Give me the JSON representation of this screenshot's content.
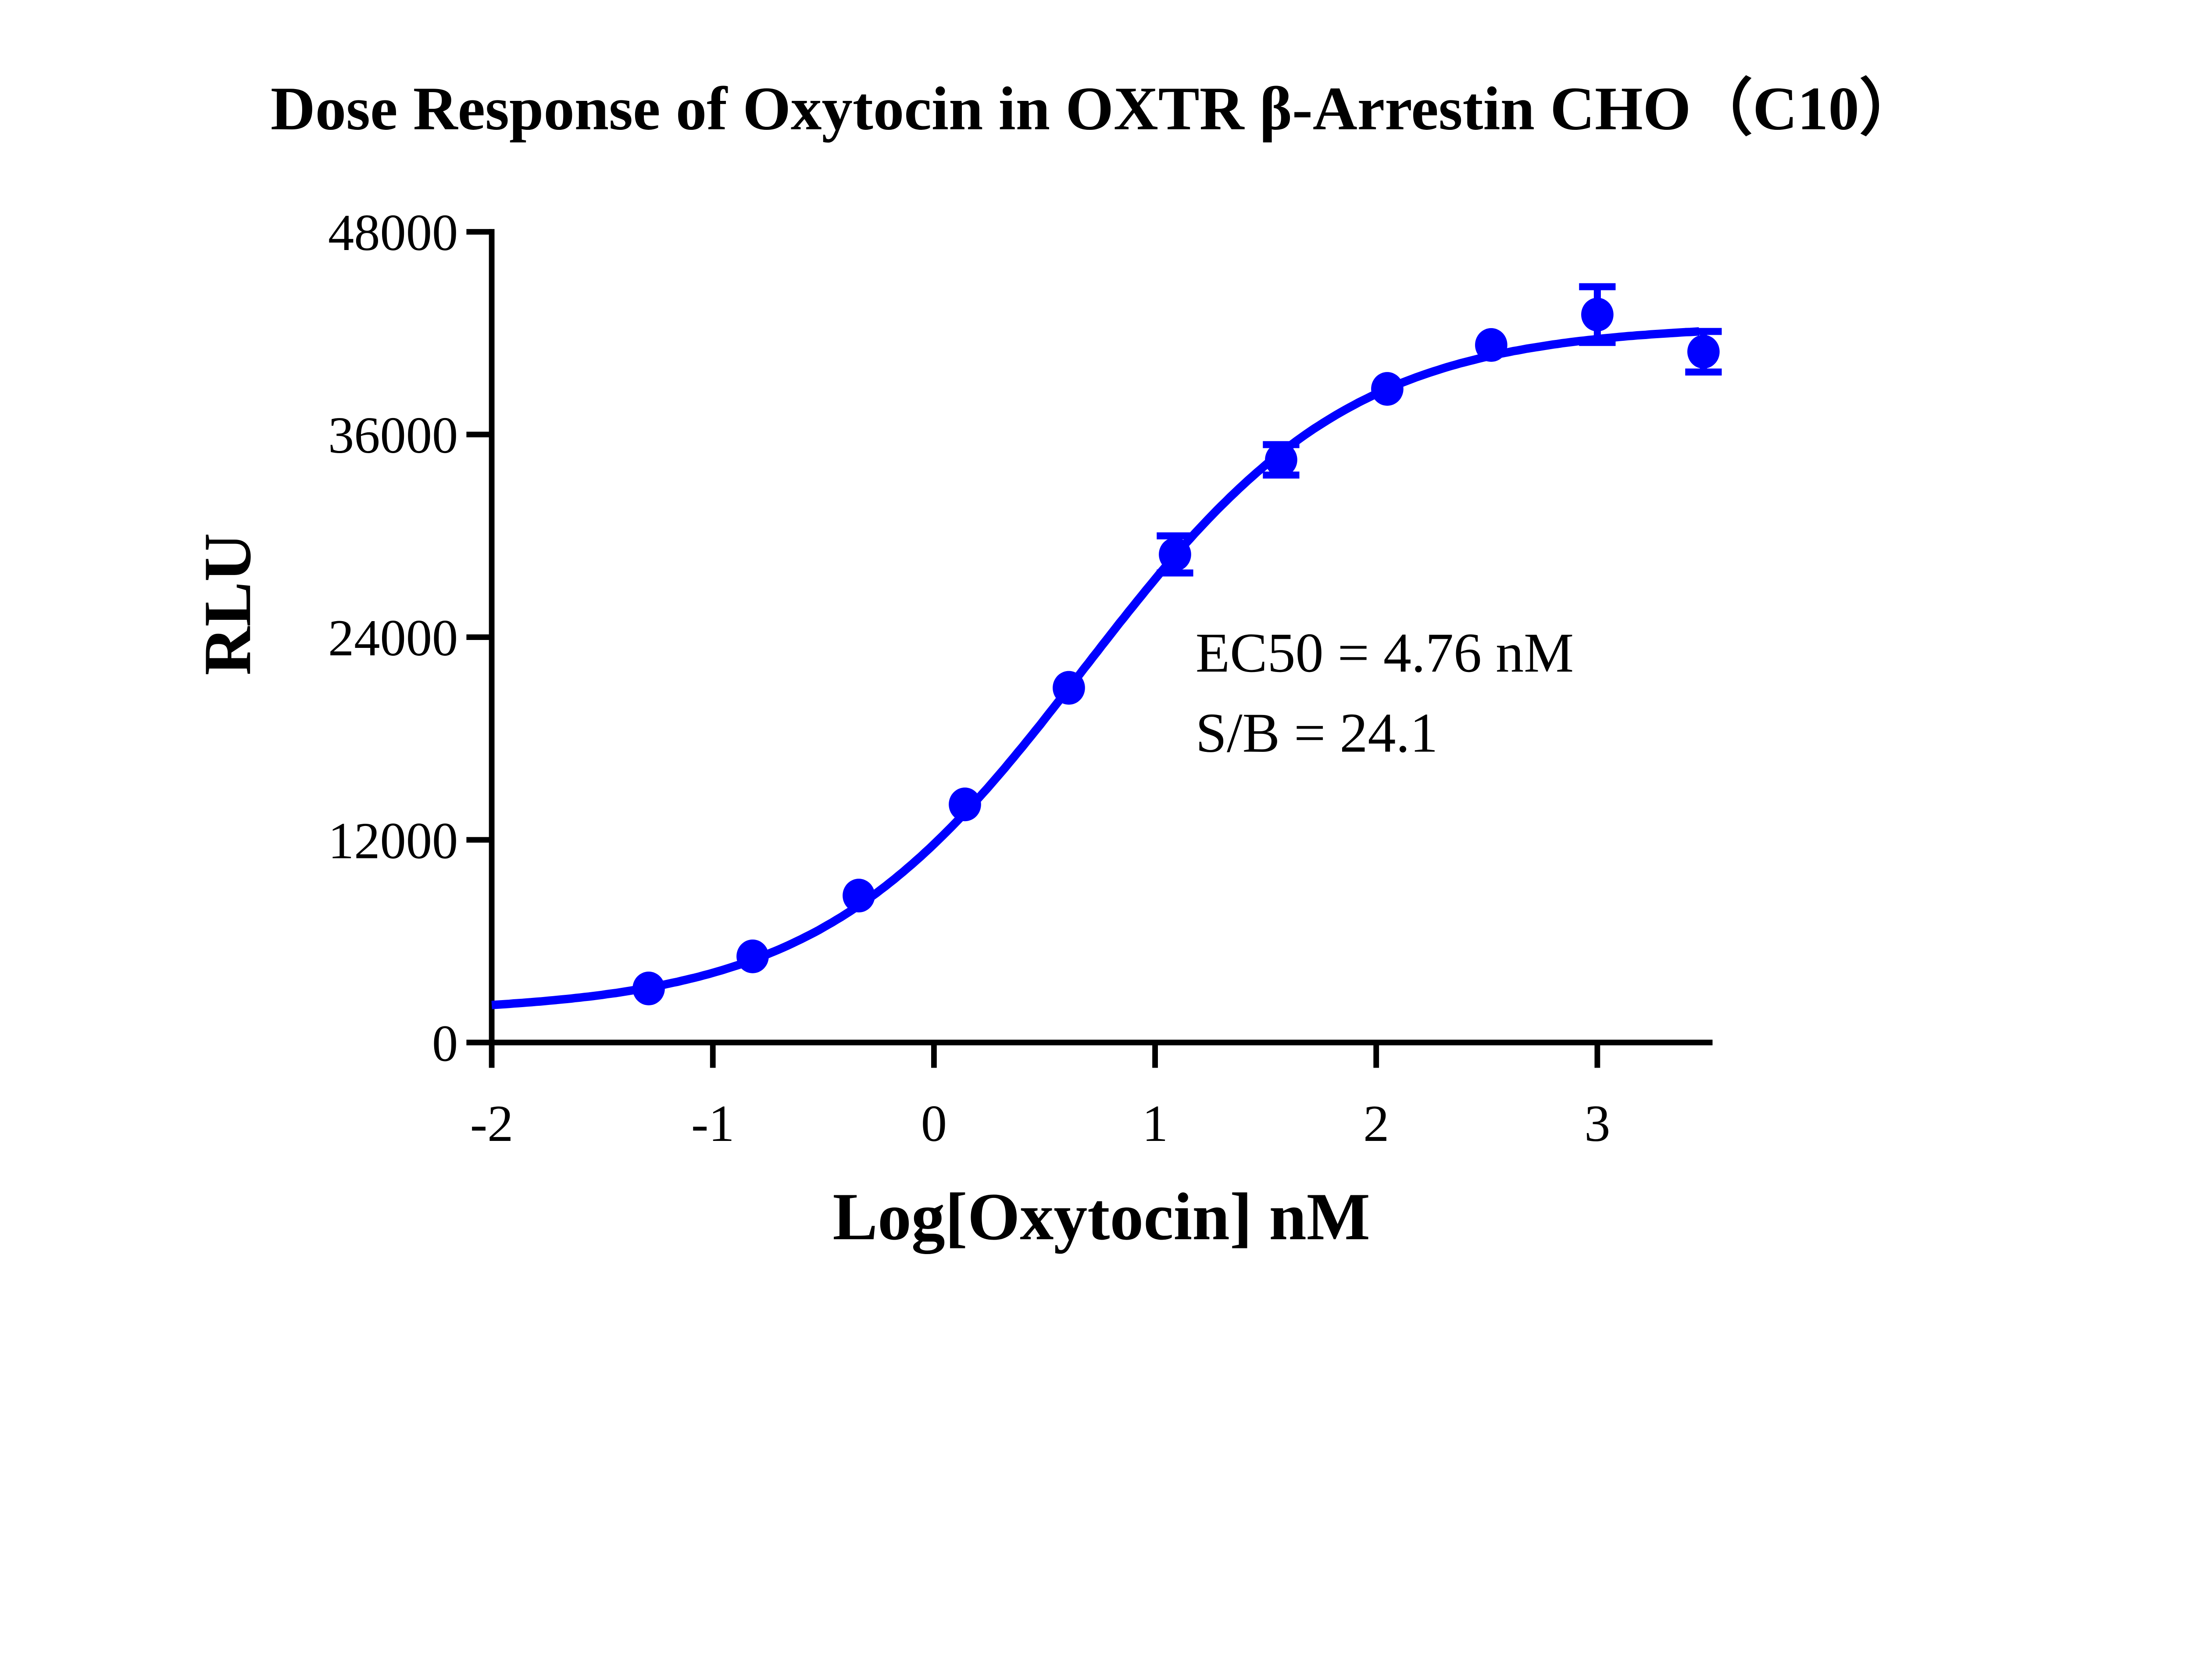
{
  "chart_data": {
    "type": "scatter",
    "title": "Dose Response of Oxytocin  in OXTR  β-Arrestin CHO（C10）",
    "xlabel": "Log[Oxytocin] nM",
    "ylabel": "RLU",
    "xlim": [
      -2,
      3.5
    ],
    "ylim": [
      0,
      48000
    ],
    "xticks": [
      "-2",
      "-1",
      "0",
      "1",
      "2",
      "3"
    ],
    "yticks": [
      "0",
      "12000",
      "24000",
      "36000",
      "48000"
    ],
    "grid": false,
    "color": "#0000ff",
    "series": [
      {
        "x": [
          -1.29,
          -0.82,
          -0.34,
          0.14,
          0.61,
          1.09,
          1.57,
          2.05,
          2.52,
          3.0,
          3.48
        ],
        "y": [
          3200,
          5100,
          8700,
          14100,
          21000,
          28900,
          34500,
          38700,
          41300,
          43100,
          40900
        ],
        "error": [
          0,
          0,
          0,
          0,
          0,
          1100,
          900,
          0,
          0,
          1650,
          1200
        ]
      }
    ],
    "fit": {
      "type": "sigmoidal dose-response",
      "logEC50": 0.678
    },
    "annotations": [
      "EC50 = 4.76 nM",
      "S/B = 24.1"
    ]
  }
}
